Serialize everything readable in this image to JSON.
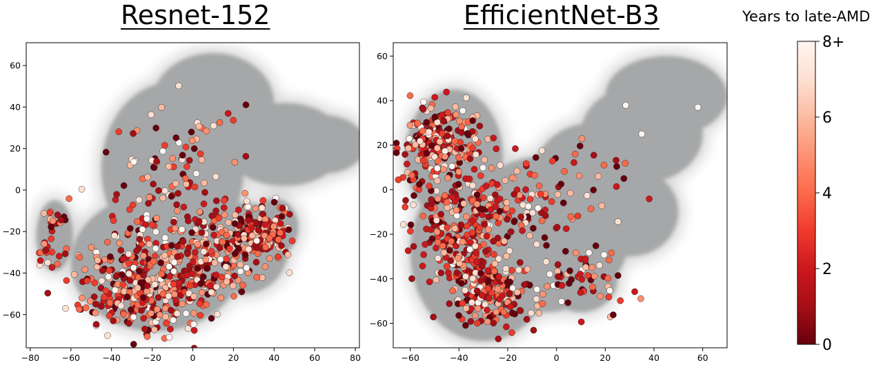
{
  "chart_data": [
    {
      "type": "scatter",
      "title": "Resnet-152",
      "xlim": [
        -82,
        82
      ],
      "ylim": [
        -76,
        71
      ],
      "xticks": [
        -80,
        -60,
        -40,
        -20,
        0,
        20,
        40,
        60,
        80
      ],
      "yticks": [
        -60,
        -40,
        -20,
        0,
        20,
        40,
        60
      ],
      "background_blobs": [
        {
          "cx": -68,
          "cy": -22,
          "rx": 9,
          "ry": 17
        },
        {
          "cx": -10,
          "cy": 10,
          "rx": 35,
          "ry": 42
        },
        {
          "cx": 10,
          "cy": 42,
          "rx": 30,
          "ry": 24
        },
        {
          "cx": 45,
          "cy": 22,
          "rx": 30,
          "ry": 20
        },
        {
          "cx": 65,
          "cy": 22,
          "rx": 20,
          "ry": 14
        },
        {
          "cx": -18,
          "cy": -35,
          "rx": 42,
          "ry": 33
        },
        {
          "cx": 25,
          "cy": -28,
          "rx": 22,
          "ry": 22
        },
        {
          "cx": 40,
          "cy": -18,
          "rx": 12,
          "ry": 14
        }
      ],
      "clusters": [
        {
          "cx": -69,
          "cy": -22,
          "sx": 3.5,
          "sy": 9,
          "n": 30,
          "seed": 11
        },
        {
          "cx": -22,
          "cy": -45,
          "sx": 16,
          "sy": 13,
          "n": 420,
          "seed": 21
        },
        {
          "cx": 10,
          "cy": -30,
          "sx": 12,
          "sy": 12,
          "n": 180,
          "seed": 31
        },
        {
          "cx": 33,
          "cy": -20,
          "sx": 7,
          "sy": 7,
          "n": 160,
          "seed": 41
        },
        {
          "cx": -15,
          "cy": 5,
          "sx": 15,
          "sy": 16,
          "n": 90,
          "seed": 51
        },
        {
          "cx": 15,
          "cy": 30,
          "sx": 18,
          "sy": 12,
          "n": 10,
          "seed": 61
        }
      ]
    },
    {
      "type": "scatter",
      "title": "EfficientNet-B3",
      "xlim": [
        -67,
        70
      ],
      "ylim": [
        -71,
        66
      ],
      "xticks": [
        -60,
        -40,
        -20,
        0,
        20,
        40,
        60
      ],
      "yticks": [
        -60,
        -40,
        -20,
        0,
        20,
        40,
        60
      ],
      "background_blobs": [
        {
          "cx": -42,
          "cy": 15,
          "rx": 20,
          "ry": 30
        },
        {
          "cx": -30,
          "cy": -28,
          "rx": 30,
          "ry": 40
        },
        {
          "cx": -5,
          "cy": -20,
          "rx": 35,
          "ry": 35
        },
        {
          "cx": 15,
          "cy": 5,
          "rx": 25,
          "ry": 25
        },
        {
          "cx": 35,
          "cy": 25,
          "rx": 25,
          "ry": 22
        },
        {
          "cx": 45,
          "cy": 42,
          "rx": 25,
          "ry": 18
        },
        {
          "cx": 30,
          "cy": -10,
          "rx": 20,
          "ry": 20
        },
        {
          "cx": 10,
          "cy": -40,
          "rx": 15,
          "ry": 15
        }
      ],
      "clusters": [
        {
          "cx": -48,
          "cy": 22,
          "sx": 7,
          "sy": 8,
          "n": 260,
          "seed": 71
        },
        {
          "cx": -38,
          "cy": -15,
          "sx": 10,
          "sy": 14,
          "n": 260,
          "seed": 81
        },
        {
          "cx": -28,
          "cy": -45,
          "sx": 10,
          "sy": 9,
          "n": 200,
          "seed": 91
        },
        {
          "cx": -10,
          "cy": -5,
          "sx": 12,
          "sy": 12,
          "n": 90,
          "seed": 101
        },
        {
          "cx": 10,
          "cy": -40,
          "sx": 9,
          "sy": 8,
          "n": 60,
          "seed": 111
        },
        {
          "cx": 25,
          "cy": 5,
          "sx": 8,
          "sy": 10,
          "n": 12,
          "seed": 121
        }
      ],
      "outliers": [
        [
          58,
          37
        ],
        [
          35,
          25
        ]
      ]
    }
  ],
  "colorbar": {
    "title": "Years to late-AMD",
    "range": [
      0,
      8
    ],
    "ticks": [
      "0",
      "2",
      "4",
      "6",
      "8+"
    ],
    "colors": [
      "#67000d",
      "#a50f15",
      "#cb181d",
      "#ef3b2c",
      "#fb6a4a",
      "#fc9272",
      "#fcbba1",
      "#fee0d2",
      "#fff5f0"
    ]
  },
  "style": {
    "blob_color": "#a6a7a8",
    "halo_color": "#dcdcdc"
  }
}
